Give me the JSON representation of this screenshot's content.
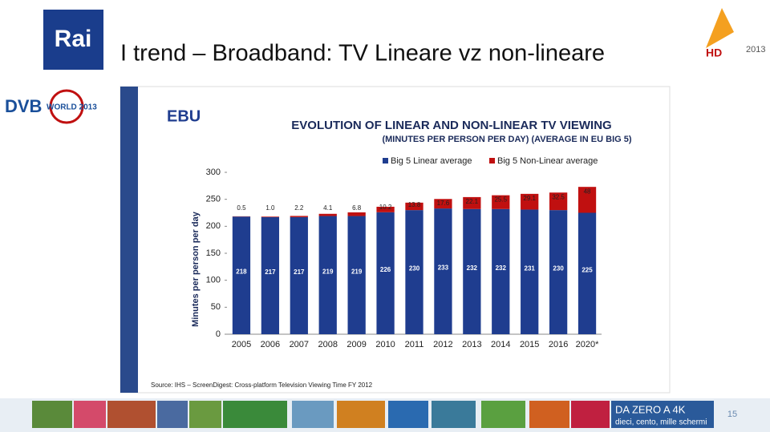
{
  "slide": {
    "title": "I trend – Broadband: TV Lineare vz non-lineare",
    "logo_left": "Rai",
    "logo_dvb": "DVB",
    "logo_dvb_sub": "WORLD 2013",
    "logo_right": "HD",
    "logo_right_year": "2013",
    "banner_title": "DA ZERO A 4K",
    "banner_subtitle": "dieci, cento, mille schermi",
    "page_number": "15"
  },
  "chart_data": {
    "type": "stacked-bar",
    "brand": "EBU",
    "title": "EVOLUTION OF LINEAR AND NON-LINEAR TV VIEWING",
    "subtitle": "(MINUTES PER PERSON PER DAY) (AVERAGE IN EU BIG 5)",
    "y_label": "Minutes per person per day",
    "source": "Source: IHS – ScreenDigest: Cross-platform Television Viewing Time FY 2012",
    "categories": [
      "2005",
      "2006",
      "2007",
      "2008",
      "2009",
      "2010",
      "2011",
      "2012",
      "2013",
      "2014",
      "2015",
      "2016",
      "2020*"
    ],
    "series": [
      {
        "name": "Big 5 Linear average",
        "color": "#1f3d8f",
        "values": [
          218,
          217,
          217,
          219,
          219,
          226,
          230,
          233,
          232,
          232,
          231,
          230,
          225
        ]
      },
      {
        "name": "Big 5 Non-Linear average",
        "color": "#c01010",
        "values": [
          0.5,
          1.0,
          2.2,
          4.1,
          6.8,
          10.2,
          13.8,
          17.6,
          22.1,
          25.5,
          29.1,
          32.5,
          48
        ],
        "value_labels": [
          "0.5",
          "1.0",
          "2.2",
          "4.1",
          "6.8",
          "10.2",
          "13.8",
          "17.6",
          "22.1",
          "25.5",
          "29.1",
          "32.5",
          "48"
        ]
      }
    ],
    "ylim": [
      0,
      300
    ],
    "yticks": [
      0,
      50,
      100,
      150,
      200,
      250,
      300
    ],
    "legend": "top"
  }
}
